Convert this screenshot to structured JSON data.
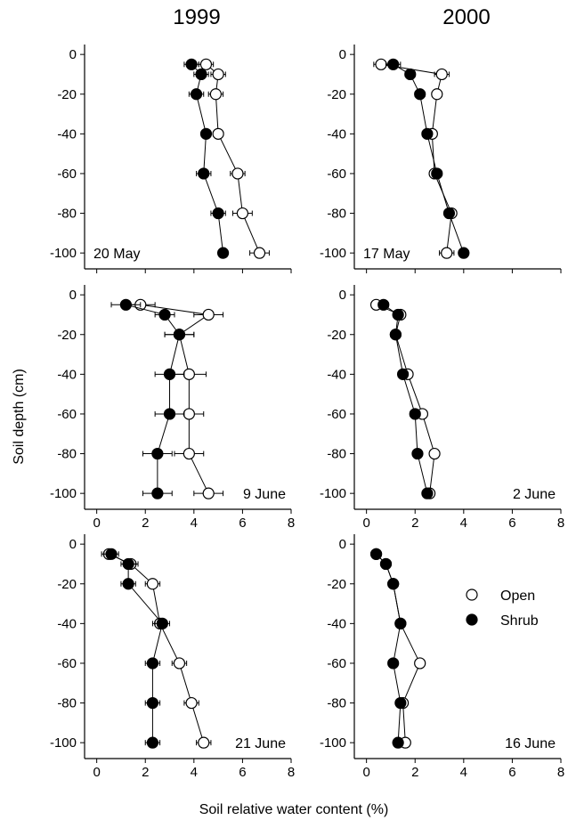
{
  "figure": {
    "column_titles": [
      "1999",
      "2000"
    ],
    "ylabel": "Soil depth (cm)",
    "xlabel": "Soil relative water content (%)",
    "legend": {
      "open_label": "Open",
      "shrub_label": "Shrub"
    }
  },
  "chart_data": [
    {
      "type": "scatter",
      "panel": "1999 / 20 May",
      "annotation": "20 May",
      "xlim": [
        -0.5,
        8
      ],
      "ylim": [
        -108,
        5
      ],
      "xticks": [],
      "yticks": [
        0,
        -20,
        -40,
        -60,
        -80,
        -100
      ],
      "series": [
        {
          "name": "Open",
          "depth": [
            -5,
            -10,
            -20,
            -40,
            -60,
            -80,
            -100
          ],
          "values": [
            4.5,
            5.0,
            4.9,
            5.0,
            5.8,
            6.0,
            6.7
          ],
          "err": [
            0.3,
            0.3,
            0.3,
            0.2,
            0.3,
            0.4,
            0.4
          ]
        },
        {
          "name": "Shrub",
          "depth": [
            -5,
            -10,
            -20,
            -40,
            -60,
            -80,
            -100
          ],
          "values": [
            3.9,
            4.3,
            4.1,
            4.5,
            4.4,
            5.0,
            5.2
          ],
          "err": [
            0.3,
            0.3,
            0.3,
            0.2,
            0.3,
            0.3,
            0.2
          ]
        }
      ]
    },
    {
      "type": "scatter",
      "panel": "2000 / 17 May",
      "annotation": "17 May",
      "xlim": [
        -0.5,
        8
      ],
      "ylim": [
        -108,
        5
      ],
      "xticks": [],
      "yticks": [
        0,
        -20,
        -40,
        -60,
        -80,
        -100
      ],
      "series": [
        {
          "name": "Open",
          "depth": [
            -5,
            -10,
            -20,
            -40,
            -60,
            -80,
            -100
          ],
          "values": [
            0.6,
            3.1,
            2.9,
            2.7,
            2.8,
            3.5,
            3.3
          ],
          "err": [
            0.3,
            0.3,
            0.2,
            0.2,
            0.2,
            0.2,
            0.3
          ]
        },
        {
          "name": "Shrub",
          "depth": [
            -5,
            -10,
            -20,
            -40,
            -60,
            -80,
            -100
          ],
          "values": [
            1.1,
            1.8,
            2.2,
            2.5,
            2.9,
            3.4,
            4.0
          ],
          "err": [
            0.3,
            0.2,
            0.2,
            0.2,
            0.2,
            0.2,
            0.2
          ]
        }
      ]
    },
    {
      "type": "scatter",
      "panel": "1999 / 9 June",
      "annotation": "9 June",
      "xlim": [
        -0.5,
        8
      ],
      "ylim": [
        -108,
        5
      ],
      "xticks": [
        0,
        2,
        4,
        6,
        8
      ],
      "yticks": [
        0,
        -20,
        -40,
        -60,
        -80,
        -100
      ],
      "series": [
        {
          "name": "Open",
          "depth": [
            -5,
            -10,
            -20,
            -40,
            -60,
            -80,
            -100
          ],
          "values": [
            1.8,
            4.6,
            3.4,
            3.8,
            3.8,
            3.8,
            4.6
          ],
          "err": [
            0.6,
            0.6,
            0.6,
            0.7,
            0.6,
            0.6,
            0.6
          ]
        },
        {
          "name": "Shrub",
          "depth": [
            -5,
            -10,
            -20,
            -40,
            -60,
            -80,
            -100
          ],
          "values": [
            1.2,
            2.8,
            3.4,
            3.0,
            3.0,
            2.5,
            2.5
          ],
          "err": [
            0.6,
            0.4,
            0.6,
            0.6,
            0.6,
            0.6,
            0.6
          ]
        }
      ]
    },
    {
      "type": "scatter",
      "panel": "2000 / 2 June",
      "annotation": "2 June",
      "xlim": [
        -0.5,
        8
      ],
      "ylim": [
        -108,
        5
      ],
      "xticks": [
        0,
        2,
        4,
        6,
        8
      ],
      "yticks": [
        0,
        -20,
        -40,
        -60,
        -80,
        -100
      ],
      "series": [
        {
          "name": "Open",
          "depth": [
            -5,
            -10,
            -20,
            -40,
            -60,
            -80,
            -100
          ],
          "values": [
            0.4,
            1.4,
            1.2,
            1.7,
            2.3,
            2.8,
            2.6
          ],
          "err": [
            0.2,
            0.2,
            0.2,
            0.2,
            0.2,
            0.2,
            0.2
          ]
        },
        {
          "name": "Shrub",
          "depth": [
            -5,
            -10,
            -20,
            -40,
            -60,
            -80,
            -100
          ],
          "values": [
            0.7,
            1.3,
            1.2,
            1.5,
            2.0,
            2.1,
            2.5
          ],
          "err": [
            0.2,
            0.2,
            0.2,
            0.2,
            0.2,
            0.2,
            0.2
          ]
        }
      ]
    },
    {
      "type": "scatter",
      "panel": "1999 / 21 June",
      "annotation": "21 June",
      "xlim": [
        -0.5,
        8
      ],
      "ylim": [
        -108,
        5
      ],
      "xticks": [
        0,
        2,
        4,
        6,
        8
      ],
      "yticks": [
        0,
        -20,
        -40,
        -60,
        -80,
        -100
      ],
      "series": [
        {
          "name": "Open",
          "depth": [
            -5,
            -10,
            -20,
            -40,
            -60,
            -80,
            -100
          ],
          "values": [
            0.5,
            1.4,
            2.3,
            2.6,
            3.4,
            3.9,
            4.4
          ],
          "err": [
            0.3,
            0.3,
            0.3,
            0.3,
            0.3,
            0.3,
            0.3
          ]
        },
        {
          "name": "Shrub",
          "depth": [
            -5,
            -10,
            -20,
            -40,
            -60,
            -80,
            -100
          ],
          "values": [
            0.6,
            1.3,
            1.3,
            2.7,
            2.3,
            2.3,
            2.3
          ],
          "err": [
            0.3,
            0.3,
            0.3,
            0.3,
            0.3,
            0.3,
            0.3
          ]
        }
      ]
    },
    {
      "type": "scatter",
      "panel": "2000 / 16 June",
      "annotation": "16 June",
      "xlim": [
        -0.5,
        8
      ],
      "ylim": [
        -108,
        5
      ],
      "xticks": [
        0,
        2,
        4,
        6,
        8
      ],
      "yticks": [
        0,
        -20,
        -40,
        -60,
        -80,
        -100
      ],
      "series": [
        {
          "name": "Open",
          "depth": [
            -5,
            -10,
            -20,
            -40,
            -60,
            -80,
            -100
          ],
          "values": [
            0.4,
            0.8,
            1.1,
            1.4,
            2.2,
            1.5,
            1.6
          ],
          "err": [
            0.1,
            0.1,
            0.1,
            0.1,
            0.1,
            0.1,
            0.1
          ]
        },
        {
          "name": "Shrub",
          "depth": [
            -5,
            -10,
            -20,
            -40,
            -60,
            -80,
            -100
          ],
          "values": [
            0.4,
            0.8,
            1.1,
            1.4,
            1.1,
            1.4,
            1.3
          ],
          "err": [
            0.1,
            0.1,
            0.1,
            0.1,
            0.1,
            0.1,
            0.1
          ]
        }
      ]
    }
  ]
}
